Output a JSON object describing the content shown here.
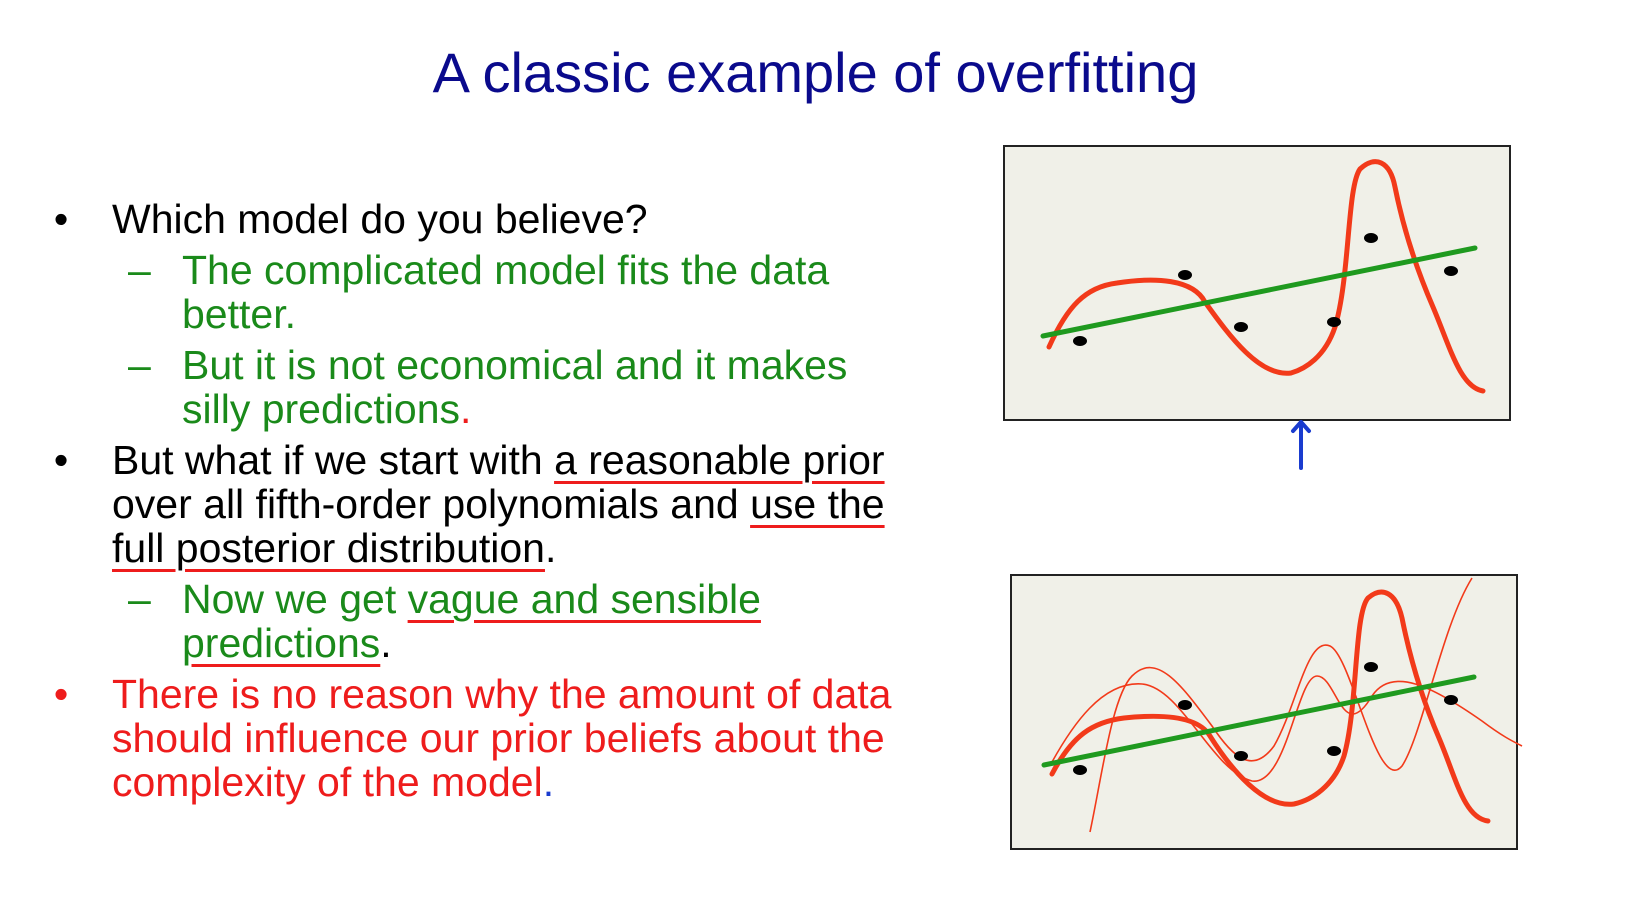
{
  "title": "A classic example of overfitting",
  "bullets": [
    {
      "text": "Which model do you believe?",
      "sub": [
        {
          "text": "The complicated model fits the data better."
        },
        {
          "text_before": "But it is not economical and it makes silly predictions",
          "end": "."
        }
      ]
    },
    {
      "pre": "But what if we start with ",
      "ul1": "a reasonable prior",
      "mid": " over all fifth-order polynomials and ",
      "ul2": "use the full posterior distribution",
      "end": ".",
      "sub": [
        {
          "pre": "Now we get ",
          "ul": "vague and sensible predictions",
          "end": "."
        }
      ]
    },
    {
      "text": "There is no reason why the amount of data should influence our prior beliefs about the complexity of the model",
      "end": "."
    }
  ],
  "markers": {
    "bullet": "•",
    "dash": "–"
  },
  "colors": {
    "title": "#0a0a8c",
    "green_text": "#1a8a1a",
    "red": "#ee1c1c",
    "green_line": "#1f9a1f",
    "red_curve": "#f23a1a",
    "arrow_blue": "#1a3ccf",
    "plot_bg": "#f0f0e8"
  },
  "icons": {
    "arrow": "up-arrow-icon"
  }
}
